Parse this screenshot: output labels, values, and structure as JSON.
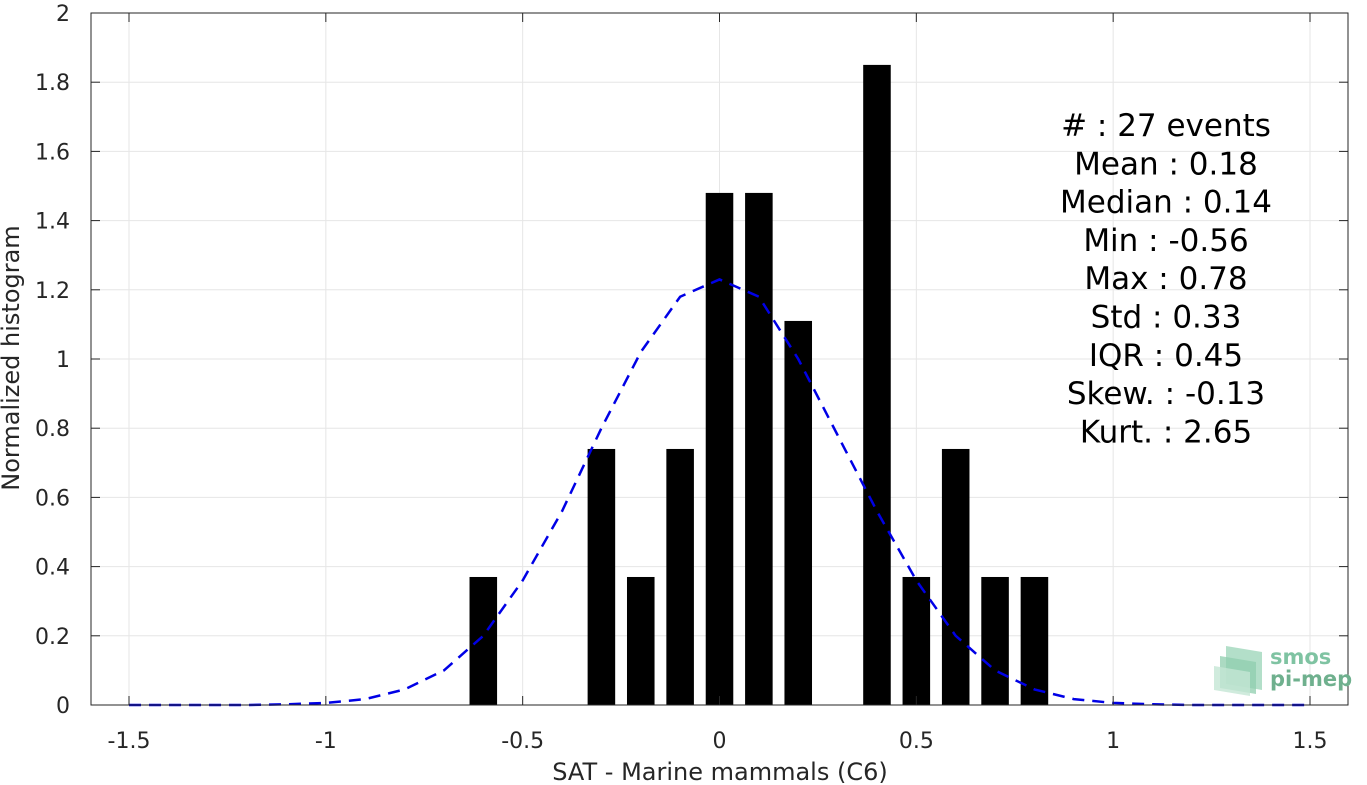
{
  "chart_data": {
    "type": "bar",
    "xlabel": "SAT - Marine mammals (C6)",
    "ylabel": "Normalized histogram",
    "xlim": [
      -1.5,
      1.5
    ],
    "ylim": [
      0,
      2
    ],
    "grid": true,
    "x_ticks": [
      "-1.5",
      "-1",
      "-0.5",
      "0",
      "0.5",
      "1",
      "1.5"
    ],
    "y_ticks": [
      "0",
      "0.2",
      "0.4",
      "0.6",
      "0.8",
      "1",
      "1.2",
      "1.4",
      "1.6",
      "1.8",
      "2"
    ],
    "bar_width": 0.07,
    "bars": {
      "x": [
        -0.6,
        -0.3,
        -0.2,
        -0.1,
        0.0,
        0.1,
        0.2,
        0.4,
        0.5,
        0.6,
        0.7,
        0.8
      ],
      "values": [
        0.37,
        0.74,
        0.37,
        0.74,
        1.48,
        1.48,
        1.11,
        1.85,
        0.37,
        0.74,
        0.37,
        0.37
      ],
      "color": "#000000"
    },
    "fit_curve": {
      "style": "dashed",
      "color": "#0000e6",
      "x": [
        -1.5,
        -1.4,
        -1.3,
        -1.2,
        -1.1,
        -1.0,
        -0.9,
        -0.8,
        -0.7,
        -0.6,
        -0.5,
        -0.4,
        -0.3,
        -0.2,
        -0.1,
        0.0,
        0.1,
        0.2,
        0.3,
        0.4,
        0.5,
        0.6,
        0.7,
        0.8,
        0.9,
        1.0,
        1.1,
        1.2,
        1.3,
        1.4,
        1.5
      ],
      "y": [
        0.0,
        0.0,
        0.0,
        0.0,
        0.002,
        0.006,
        0.017,
        0.045,
        0.1,
        0.2,
        0.36,
        0.56,
        0.8,
        1.02,
        1.18,
        1.23,
        1.18,
        1.0,
        0.78,
        0.56,
        0.36,
        0.2,
        0.1,
        0.045,
        0.017,
        0.006,
        0.002,
        0.0,
        0.0,
        0.0,
        0.0
      ]
    },
    "annotations": [
      "#  : 27 events",
      "Mean : 0.18",
      "Median : 0.14",
      "Min : -0.56",
      "Max : 0.78",
      "Std : 0.33",
      "IQR : 0.45",
      "Skew. : -0.13",
      "Kurt. : 2.65"
    ]
  },
  "logo": {
    "line1": "smos",
    "line2": "pi-mep"
  },
  "colors": {
    "bar": "#000000",
    "fit": "#0000e6",
    "grid": "#e6e6e6",
    "axis": "#262626",
    "logo": "#7fc3a2"
  }
}
